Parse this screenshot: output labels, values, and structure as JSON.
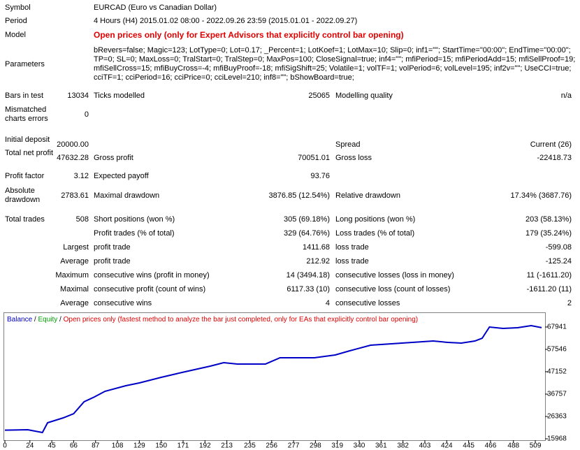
{
  "header_rows": [
    {
      "label": "Symbol",
      "value": "EURCAD (Euro vs Canadian Dollar)"
    },
    {
      "label": "Period",
      "value": "4 Hours (H4) 2015.01.02 08:00 - 2022.09.26 23:59 (2015.01.01 - 2022.09.27)"
    },
    {
      "label": "Model",
      "value": "Open prices only (only for Expert Advisors that explicitly control bar opening)"
    }
  ],
  "parameters": {
    "label": "Parameters",
    "lines": [
      "bRevers=false; Magic=123; LotType=0; Lot=0.17; _Percent=1; LotKoef=1; LotMax=10; Slip=0; inf1=\"\"; StartTime=\"00:00\"; EndTime=\"00:00\";",
      "TP=0; SL=0; MaxLoss=0; TralStart=0; TralStep=0; MaxPos=100; CloseSignal=true; inf4=\"\"; mfiPeriod=15; mfiPeriodAdd=15; mfiSellProof=19;",
      "mfiSellCross=15; mfiBuyCross=-4; mfiBuyProof=-18; mfiSigShift=25; Volatile=1; volTF=1; volPeriod=6; volLevel=195; inf2v=\"\"; UseCCI=true;",
      "cciTF=1; cciPeriod=16; cciPrice=0; cciLevel=210; inf8=\"\"; bShowBoard=true;"
    ]
  },
  "stats": [
    {
      "label1": "Bars in test",
      "value1": "13034",
      "label2": "Ticks modelled",
      "value2": "25065",
      "label3": "Modelling quality",
      "value3": "n/a"
    },
    {
      "label1": "Mismatched charts errors",
      "value1": "0"
    },
    {
      "label1": "Initial deposit",
      "value1": "20000.00",
      "label3": "Spread",
      "value3": "Current (26)"
    },
    {
      "label1": "Total net profit",
      "value1": "47632.28",
      "label2": "Gross profit",
      "value2": "70051.01",
      "label3": "Gross loss",
      "value3": "-22418.73"
    },
    {
      "label1": "Profit factor",
      "value1": "3.12",
      "label2": "Expected payoff",
      "value2": "93.76"
    },
    {
      "label1": "Absolute drawdown",
      "value1": "2783.61",
      "label2": "Maximal drawdown",
      "value2": "3876.85 (12.54%)",
      "label3": "Relative drawdown",
      "value3": "17.34% (3687.76)"
    },
    {
      "label1": "Total trades",
      "value1": "508",
      "label2": "Short positions (won %)",
      "value2": "305 (69.18%)",
      "label3": "Long positions (won %)",
      "value3": "203 (58.13%)"
    },
    {
      "label2": "Profit trades (% of total)",
      "value2": "329 (64.76%)",
      "label3": "Loss trades (% of total)",
      "value3": "179 (35.24%)"
    },
    {
      "value1": "Largest",
      "label2": "profit trade",
      "value2": "1411.68",
      "label3": "loss trade",
      "value3": "-599.08"
    },
    {
      "value1": "Average",
      "label2": "profit trade",
      "value2": "212.92",
      "label3": "loss trade",
      "value3": "-125.24"
    },
    {
      "value1": "Maximum",
      "label2": "consecutive wins (profit in money)",
      "value2": "14 (3494.18)",
      "label3": "consecutive losses (loss in money)",
      "value3": "11 (-1611.20)"
    },
    {
      "value1": "Maximal",
      "label2": "consecutive profit (count of wins)",
      "value2": "6117.33 (10)",
      "label3": "consecutive loss (count of losses)",
      "value3": "-1611.20 (11)"
    },
    {
      "value1": "Average",
      "label2": "consecutive wins",
      "value2": "4",
      "label3": "consecutive losses",
      "value3": "2"
    }
  ],
  "chart_data": {
    "type": "line",
    "legend_separator": " / ",
    "note": "Open prices only (fastest method to analyze the bar just completed, only for EAs that explicitly control bar opening)",
    "note_color": "#e00000",
    "x": [
      0,
      22,
      36,
      41,
      56,
      66,
      76,
      86,
      96,
      116,
      129,
      150,
      170,
      197,
      210,
      223,
      250,
      264,
      297,
      317,
      331,
      351,
      371,
      391,
      411,
      425,
      438,
      451,
      458,
      465,
      478,
      492,
      505,
      515
    ],
    "series": [
      {
        "name": "Equity",
        "color": "#00a000",
        "values": [
          20000,
          20196,
          18896,
          23443,
          25717,
          27666,
          33187,
          35461,
          38059,
          40658,
          41957,
          44556,
          46829,
          49752,
          51377,
          50727,
          50727,
          53650,
          53650,
          54950,
          56898,
          59497,
          60146,
          60796,
          61445,
          60796,
          60471,
          61445,
          62744,
          67941,
          67291,
          67616,
          68590,
          67632
        ]
      },
      {
        "name": "Balance",
        "color": "#0000c8",
        "values": [
          20000,
          20196,
          18896,
          23443,
          25717,
          27666,
          33187,
          35461,
          38059,
          40658,
          41957,
          44556,
          46829,
          49752,
          51377,
          50727,
          50727,
          53650,
          53650,
          54950,
          56898,
          59497,
          60146,
          60796,
          61445,
          60796,
          60471,
          61445,
          62744,
          67941,
          67291,
          67616,
          68590,
          67632
        ]
      }
    ],
    "xlim": [
      0,
      515
    ],
    "ylim": [
      15968,
      74100
    ],
    "xticks": [
      0,
      24,
      45,
      66,
      87,
      108,
      129,
      150,
      171,
      192,
      213,
      235,
      256,
      277,
      298,
      319,
      340,
      361,
      382,
      403,
      424,
      445,
      466,
      488,
      509
    ],
    "yticks": [
      15968,
      26363,
      36757,
      47152,
      57546,
      67941
    ]
  }
}
